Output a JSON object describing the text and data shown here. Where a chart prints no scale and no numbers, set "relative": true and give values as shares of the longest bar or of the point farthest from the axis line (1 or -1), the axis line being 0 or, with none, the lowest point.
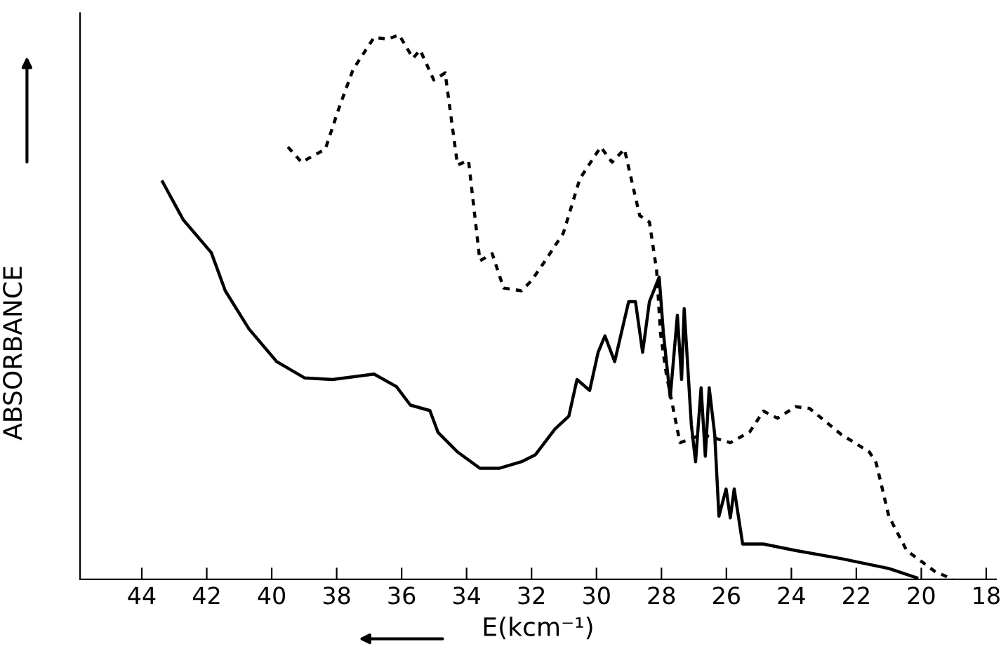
{
  "chart_data": {
    "type": "line",
    "xlabel": "E(kcm⁻¹)",
    "ylabel": "ABSORBANCE",
    "relative": true,
    "xlim": [
      45.9,
      17.7
    ],
    "xticks": [
      44,
      42,
      40,
      38,
      36,
      34,
      32,
      30,
      28,
      26,
      24,
      22,
      20,
      18
    ],
    "series": [
      {
        "color": "#000000",
        "line_style": "solid",
        "x": [
          43.36,
          42.72,
          41.86,
          41.43,
          40.7,
          39.85,
          38.99,
          38.13,
          36.85,
          36.16,
          35.73,
          35.13,
          34.88,
          34.28,
          33.59,
          33.0,
          32.31,
          31.88,
          31.28,
          30.85,
          30.6,
          30.21,
          29.95,
          29.74,
          29.44,
          29.01,
          28.8,
          28.58,
          28.37,
          28.07,
          27.94,
          27.73,
          27.51,
          27.38,
          27.3,
          27.08,
          26.95,
          26.78,
          26.65,
          26.53,
          26.36,
          26.23,
          26.01,
          25.88,
          25.76,
          25.5,
          24.86,
          23.87,
          22.46,
          21.0,
          20.14
        ],
        "values": [
          0.73,
          0.66,
          0.6,
          0.53,
          0.46,
          0.4,
          0.37,
          0.367,
          0.377,
          0.354,
          0.32,
          0.31,
          0.27,
          0.234,
          0.204,
          0.204,
          0.216,
          0.229,
          0.276,
          0.3,
          0.367,
          0.347,
          0.417,
          0.447,
          0.4,
          0.51,
          0.51,
          0.417,
          0.51,
          0.555,
          0.452,
          0.334,
          0.485,
          0.367,
          0.497,
          0.284,
          0.216,
          0.352,
          0.226,
          0.352,
          0.266,
          0.116,
          0.166,
          0.113,
          0.166,
          0.065,
          0.065,
          0.053,
          0.038,
          0.02,
          0.003
        ]
      },
      {
        "color": "#000000",
        "line_style": "dotted",
        "x": [
          39.5,
          39.08,
          38.35,
          37.92,
          37.49,
          36.85,
          36.42,
          36.08,
          35.65,
          35.43,
          35.01,
          34.66,
          34.28,
          33.94,
          33.59,
          33.21,
          32.86,
          32.31,
          32.01,
          31.58,
          31.02,
          30.51,
          29.87,
          29.52,
          29.14,
          28.67,
          28.37,
          28.15,
          28.03,
          27.85,
          27.43,
          26.74,
          25.88,
          25.28,
          24.86,
          24.43,
          23.87,
          23.44,
          22.46,
          21.6,
          21.39,
          21.0,
          20.45,
          19.59,
          19.03
        ],
        "values": [
          0.794,
          0.766,
          0.79,
          0.867,
          0.937,
          0.995,
          0.992,
          1.0,
          0.957,
          0.972,
          0.917,
          0.93,
          0.761,
          0.769,
          0.585,
          0.598,
          0.535,
          0.53,
          0.548,
          0.585,
          0.636,
          0.736,
          0.794,
          0.766,
          0.79,
          0.668,
          0.656,
          0.568,
          0.452,
          0.377,
          0.251,
          0.266,
          0.251,
          0.271,
          0.309,
          0.296,
          0.317,
          0.314,
          0.266,
          0.234,
          0.214,
          0.116,
          0.053,
          0.015,
          0.0
        ]
      }
    ]
  }
}
